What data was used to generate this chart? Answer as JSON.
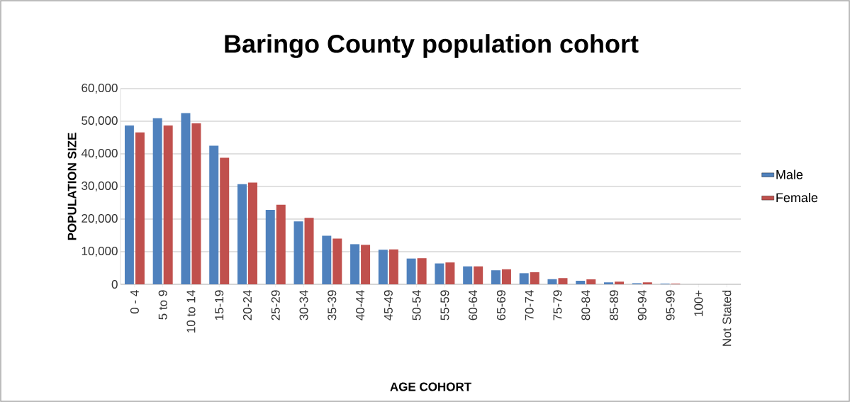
{
  "chart_data": {
    "type": "bar",
    "title": "Baringo County population cohort",
    "xlabel": "AGE COHORT",
    "ylabel": "POPULATION SIZE",
    "categories": [
      "0 - 4",
      "5 to 9",
      "10 to 14",
      "15-19",
      "20-24",
      "25-29",
      "30-34",
      "35-39",
      "40-44",
      "45-49",
      "50-54",
      "55-59",
      "60-64",
      "65-69",
      "70-74",
      "75-79",
      "80-84",
      "85-89",
      "90-94",
      "95-99",
      "100+",
      "Not Stated"
    ],
    "series": [
      {
        "name": "Male",
        "color": "#4f81bd",
        "values": [
          48700,
          50900,
          52500,
          42500,
          30700,
          22800,
          19300,
          14900,
          12300,
          10600,
          7900,
          6400,
          5500,
          4300,
          3400,
          1600,
          1100,
          600,
          300,
          200,
          null,
          null
        ]
      },
      {
        "name": "Female",
        "color": "#c0504d",
        "values": [
          46600,
          48700,
          49400,
          38800,
          31200,
          24400,
          20400,
          14000,
          12100,
          10700,
          8000,
          6700,
          5500,
          4600,
          3700,
          1900,
          1500,
          800,
          600,
          200,
          null,
          null
        ]
      }
    ],
    "ylim": [
      0,
      60000
    ],
    "yticks": [
      {
        "value": 0,
        "label": "0"
      },
      {
        "value": 10000,
        "label": "10,000"
      },
      {
        "value": 20000,
        "label": "20,000"
      },
      {
        "value": 30000,
        "label": "30,000"
      },
      {
        "value": 40000,
        "label": "40,000"
      },
      {
        "value": 50000,
        "label": "50,000"
      },
      {
        "value": 60000,
        "label": "60,000"
      }
    ],
    "grid": "y",
    "legend": "right"
  }
}
